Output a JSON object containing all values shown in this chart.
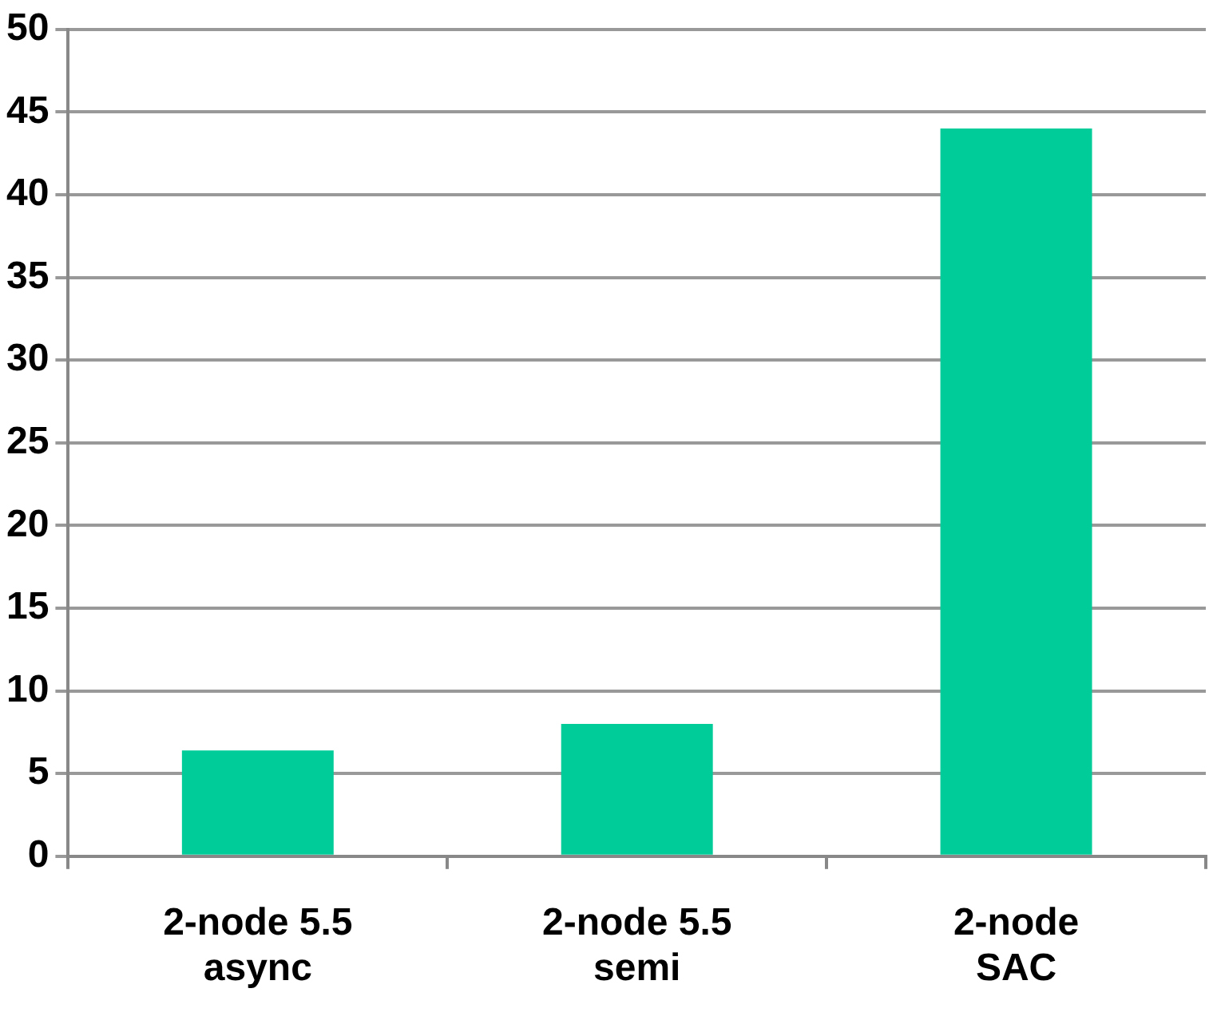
{
  "chart_data": {
    "type": "bar",
    "categories": [
      "2-node 5.5 async",
      "2-node 5.5 semi",
      "2-node SAC"
    ],
    "values": [
      6.4,
      8.0,
      44.0
    ],
    "color": "#00cc99",
    "ylim": [
      0,
      50
    ],
    "yticks": [
      0,
      5,
      10,
      15,
      20,
      25,
      30,
      35,
      40,
      45,
      50
    ],
    "grid": "y",
    "legend": false
  }
}
